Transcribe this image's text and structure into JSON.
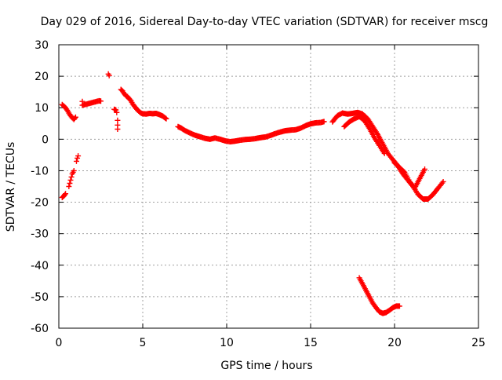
{
  "chart_data": {
    "type": "scatter",
    "title": "Day 029 of 2016, Sidereal Day-to-day VTEC variation (SDTVAR) for receiver mscg",
    "xlabel": "GPS time / hours",
    "ylabel": "SDTVAR / TECUs",
    "xlim": [
      0,
      25
    ],
    "ylim": [
      -60,
      30
    ],
    "xticks": [
      0,
      5,
      10,
      15,
      20,
      25
    ],
    "yticks": [
      -60,
      -50,
      -40,
      -30,
      -20,
      -10,
      0,
      10,
      20,
      30
    ],
    "xtick_labels": [
      "0",
      "5",
      "10",
      "15",
      "20",
      "25"
    ],
    "ytick_labels": [
      "-60",
      "-50",
      "-40",
      "-30",
      "-20",
      "-10",
      "0",
      "10",
      "20",
      "30"
    ],
    "grid": true,
    "marker": "plus",
    "color": "#ff0000",
    "segments": [
      {
        "name": "start-low",
        "x": [
          0.2,
          0.3,
          0.4
        ],
        "y": [
          -18.5,
          -18,
          -17.3
        ]
      },
      {
        "name": "start-high",
        "x": [
          0.2,
          0.3,
          0.4,
          0.5,
          0.6,
          0.7,
          0.8,
          0.9,
          1.0
        ],
        "y": [
          11,
          10.5,
          10,
          9.2,
          8.3,
          7.5,
          6.8,
          6.3,
          7
        ]
      },
      {
        "name": "rise-1",
        "x": [
          0.6,
          0.65,
          0.7,
          0.75,
          0.8,
          0.85,
          0.9
        ],
        "y": [
          -15,
          -14,
          -13,
          -12,
          -11,
          -10.5,
          -10
        ]
      },
      {
        "name": "rise-2",
        "x": [
          1.05,
          1.1,
          1.15
        ],
        "y": [
          -7,
          -6,
          -5.3
        ]
      },
      {
        "name": "isolated-1",
        "x": [
          1.4,
          1.4,
          2.4,
          2.5
        ],
        "y": [
          12,
          10.8,
          12.2,
          12.1
        ]
      },
      {
        "name": "isolated-2",
        "x": [
          2.95,
          3.0
        ],
        "y": [
          20.7,
          20.2
        ]
      },
      {
        "name": "isolated-3",
        "x": [
          3.3,
          3.4,
          3.45,
          3.5,
          3.5,
          3.5
        ],
        "y": [
          9.5,
          9.3,
          8.5,
          6,
          4.5,
          3.2
        ]
      },
      {
        "name": "hump",
        "x": [
          3.7,
          3.8,
          3.9,
          4.0,
          4.1,
          4.2,
          4.3,
          4.4,
          4.5,
          4.6,
          4.7,
          4.8,
          4.9,
          5.0,
          5.2,
          5.4,
          5.6,
          5.8,
          6.0,
          6.2,
          6.4
        ],
        "y": [
          15.8,
          15.3,
          14.4,
          13.8,
          13.5,
          12.8,
          12.2,
          11.2,
          10.5,
          9.8,
          9.2,
          8.7,
          8.3,
          8.1,
          8.0,
          8.2,
          8.1,
          8.2,
          7.8,
          7.3,
          6.5
        ]
      },
      {
        "name": "long-decline",
        "x": [
          7.1,
          7.3,
          7.5,
          7.8,
          8.1,
          8.4,
          8.7,
          9.0,
          9.3,
          9.6,
          9.9,
          10.2,
          10.5,
          10.8,
          11.1,
          11.4,
          11.7,
          12.0,
          12.3,
          12.6,
          12.9,
          13.2,
          13.5,
          13.8,
          14.1,
          14.4,
          14.7,
          15.0,
          15.3,
          15.6,
          15.8
        ],
        "y": [
          4,
          3.5,
          2.8,
          2,
          1.3,
          0.8,
          0.3,
          0,
          0.4,
          0,
          -0.5,
          -0.8,
          -0.6,
          -0.3,
          -0.1,
          0,
          0.2,
          0.5,
          0.7,
          1.2,
          1.8,
          2.3,
          2.7,
          2.9,
          3.0,
          3.5,
          4.3,
          4.9,
          5.2,
          5.3,
          5.6
        ]
      },
      {
        "name": "dip-upper",
        "x": [
          16.3,
          16.6,
          16.9,
          17.2,
          17.5,
          17.8,
          18.1,
          18.4,
          18.7,
          19.0,
          19.3,
          19.6,
          19.9,
          20.2,
          20.5,
          20.8,
          21.1,
          21.4,
          21.7,
          22.0,
          22.3,
          22.6,
          22.9
        ],
        "y": [
          5.5,
          7.5,
          8.3,
          8.0,
          8.2,
          8.5,
          8.0,
          6.5,
          4.0,
          1.5,
          -1.5,
          -4.5,
          -6.5,
          -8.5,
          -11.0,
          -13.0,
          -15.0,
          -17.5,
          -19.0,
          -19.0,
          -17.5,
          -15.5,
          -13.5
        ]
      },
      {
        "name": "dip-lower",
        "x": [
          17.0,
          17.3,
          17.6,
          17.9,
          18.2,
          18.5,
          18.8,
          19.1,
          19.4
        ],
        "y": [
          4.0,
          5.5,
          6.5,
          7.2,
          6.0,
          3.5,
          0.5,
          -2.0,
          -4.5
        ]
      },
      {
        "name": "dip-tail",
        "x": [
          20.0,
          20.3,
          20.6,
          20.9,
          21.2,
          21.5,
          21.8
        ],
        "y": [
          -7.5,
          -9.0,
          -10.5,
          -13.5,
          -15.5,
          -12.5,
          -9.5
        ]
      },
      {
        "name": "outlier-arc",
        "x": [
          17.9,
          18.1,
          18.3,
          18.5,
          18.7,
          18.9,
          19.1,
          19.3,
          19.5,
          19.7,
          19.9,
          20.1,
          20.3
        ],
        "y": [
          -44,
          -46,
          -48,
          -50,
          -52,
          -53.5,
          -54.8,
          -55.3,
          -55.0,
          -54.3,
          -53.5,
          -53.0,
          -53.0
        ]
      }
    ]
  }
}
